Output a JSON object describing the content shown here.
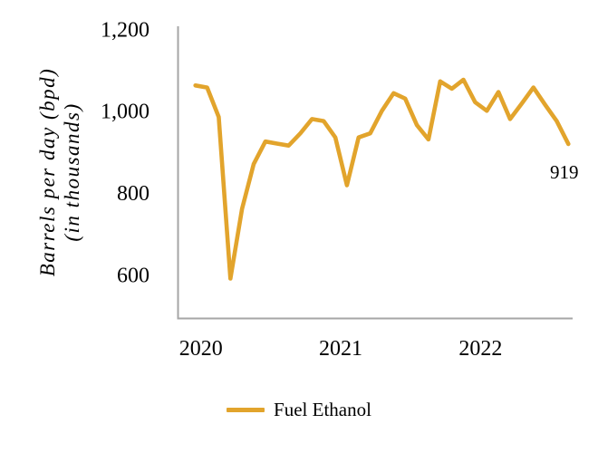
{
  "chart_data": {
    "type": "line",
    "x": [
      "2020-01",
      "2020-02",
      "2020-03",
      "2020-04",
      "2020-05",
      "2020-06",
      "2020-07",
      "2020-08",
      "2020-09",
      "2020-10",
      "2020-11",
      "2020-12",
      "2021-01",
      "2021-02",
      "2021-03",
      "2021-04",
      "2021-05",
      "2021-06",
      "2021-07",
      "2021-08",
      "2021-09",
      "2021-10",
      "2021-11",
      "2021-12",
      "2022-01",
      "2022-02",
      "2022-03",
      "2022-04",
      "2022-05",
      "2022-06",
      "2022-07",
      "2022-08",
      "2022-09"
    ],
    "series": [
      {
        "name": "Fuel Ethanol",
        "color": "#E2A42C",
        "values": [
          1062,
          1057,
          985,
          590,
          760,
          870,
          925,
          920,
          915,
          945,
          980,
          975,
          935,
          818,
          935,
          945,
          1000,
          1043,
          1030,
          965,
          930,
          1072,
          1054,
          1076,
          1021,
          1000,
          1046,
          980,
          1018,
          1057,
          1015,
          975,
          919
        ]
      }
    ],
    "ylabel_line1": "Barrels per day (bpd)",
    "ylabel_line2": "(in thousands)",
    "y_ticks": [
      {
        "label": "1,200",
        "value": 1200
      },
      {
        "label": "1,000",
        "value": 1000
      },
      {
        "label": "800",
        "value": 800
      },
      {
        "label": "600",
        "value": 600
      }
    ],
    "x_ticks": [
      {
        "label": "2020",
        "at": "2020-01"
      },
      {
        "label": "2021",
        "at": "2021-01"
      },
      {
        "label": "2022",
        "at": "2022-01"
      }
    ],
    "ylim": [
      500,
      1200
    ],
    "grid": false,
    "legend_position": "bottom-center",
    "end_annotation": "919",
    "axis_color": "#A6A6A6",
    "text_color": "#000000"
  }
}
